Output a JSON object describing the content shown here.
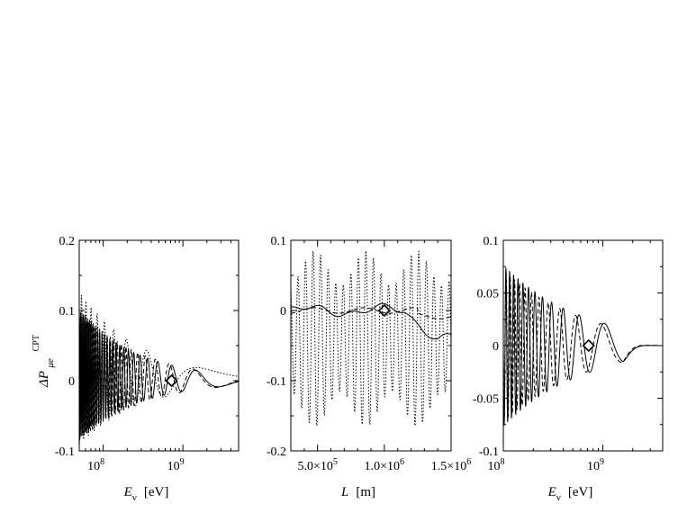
{
  "figure": {
    "ylabel_symbol": "ΔP",
    "ylabel_sub": "μe",
    "ylabel_sup": "CPT"
  },
  "chart_data": [
    {
      "type": "line",
      "panel": "left",
      "xscale": "log",
      "xlim": [
        50000000,
        5000000000
      ],
      "ylim": [
        -0.1,
        0.2
      ],
      "xticks": [
        {
          "value": 100000000,
          "base": "10",
          "exp": "8"
        },
        {
          "value": 1000000000,
          "base": "10",
          "exp": "9"
        }
      ],
      "yticks": [
        {
          "value": 0.2,
          "label": "0.2"
        },
        {
          "value": 0.1,
          "label": "0.1"
        },
        {
          "value": 0,
          "label": "0"
        },
        {
          "value": -0.1,
          "label": "-0.1"
        }
      ],
      "xlabel": "E",
      "xlabel_sub": "ν",
      "xlabel_unit": "[eV]",
      "marker": {
        "x": 720000000,
        "y": 0
      },
      "series": [
        {
          "name": "solid",
          "style": "solid",
          "amp": 0.16,
          "env_center": 0.0,
          "env_scale": 1.6,
          "env_power": 1.0,
          "zero": 2900000000,
          "freq_const": 1.0,
          "offset": 0.0,
          "cutoff": 850000000
        },
        {
          "name": "dashed",
          "style": "dashed",
          "amp": 0.17,
          "env_center": 0.0,
          "env_scale": 1.7,
          "env_power": 1.0,
          "zero": 2700000000,
          "freq_const": 1.0,
          "offset": 0.0,
          "cutoff": 700000000
        },
        {
          "name": "dotted",
          "style": "dotted",
          "amp": 0.12,
          "env_center": 0.0,
          "env_scale": 1.4,
          "env_power": 1.0,
          "zero": 1600000000,
          "freq_const": 0.55,
          "offset": 0.02,
          "cutoff": 5000000000
        }
      ]
    },
    {
      "type": "line",
      "panel": "middle",
      "xscale": "linear",
      "xlim": [
        300000,
        1500000
      ],
      "ylim": [
        -0.2,
        0.1
      ],
      "xticks": [
        {
          "value": 500000,
          "label": "5.0×10",
          "exp": "5"
        },
        {
          "value": 1000000,
          "label": "1.0×10",
          "exp": "6"
        },
        {
          "value": 1500000,
          "label": "1.5×10",
          "exp": "6"
        }
      ],
      "yticks": [
        {
          "value": 0.1,
          "label": "0.1"
        },
        {
          "value": 0,
          "label": "0"
        },
        {
          "value": -0.1,
          "label": "-0.1"
        },
        {
          "value": -0.2,
          "label": "-0.2"
        }
      ],
      "xlabel": "L",
      "xlabel_unit": "[m]",
      "marker": {
        "x": 1000000,
        "y": 0
      },
      "series": [
        {
          "name": "solid",
          "style": "solid",
          "note": "slowly varying around zero, dips to -0.04 near L=1.5e6"
        },
        {
          "name": "dashed",
          "style": "dashed",
          "note": "nearly flat near zero"
        },
        {
          "name": "dotted",
          "style": "dotted",
          "note": "rapid oscillation between -0.17 and 0.09"
        }
      ]
    },
    {
      "type": "line",
      "panel": "right",
      "xscale": "log",
      "xlim": [
        100000000,
        4000000000
      ],
      "ylim": [
        -0.1,
        0.1
      ],
      "xticks": [
        {
          "value": 100000000,
          "base": "10",
          "exp": "8"
        },
        {
          "value": 1000000000,
          "base": "10",
          "exp": "9"
        }
      ],
      "yticks": [
        {
          "value": 0.1,
          "label": "0.1"
        },
        {
          "value": 0.05,
          "label": "0.05"
        },
        {
          "value": 0,
          "label": "0"
        },
        {
          "value": -0.05,
          "label": "-0.05"
        },
        {
          "value": -0.1,
          "label": "-0.1"
        }
      ],
      "xlabel": "E",
      "xlabel_sub": "ν",
      "xlabel_unit": "[eV]",
      "marker": {
        "x": 720000000,
        "y": 0
      },
      "series": [
        {
          "name": "solid",
          "style": "solid",
          "amp": 0.085,
          "zero": 2600000000,
          "freq_const": 1.0
        },
        {
          "name": "dashed",
          "style": "dashed",
          "amp": 0.085,
          "zero": 2400000000,
          "freq_const": 1.0
        }
      ]
    }
  ]
}
